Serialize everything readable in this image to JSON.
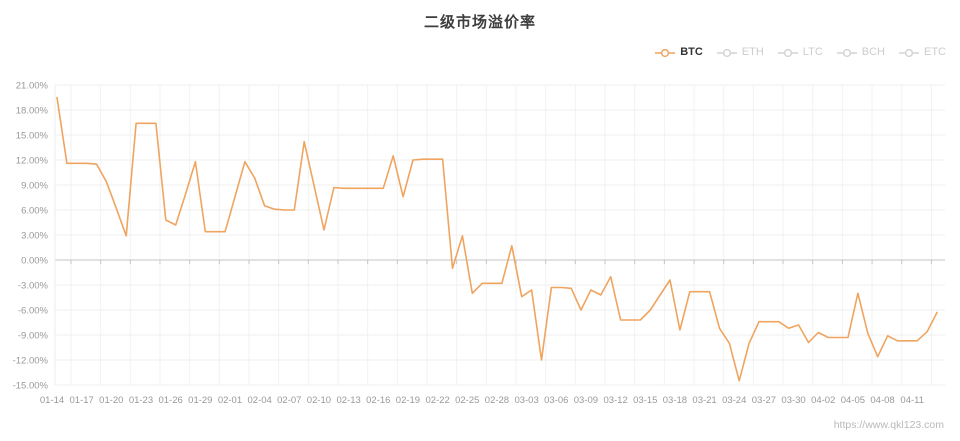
{
  "title": "二级市场溢价率",
  "watermark": "https://www.qkl123.com",
  "legend": {
    "items": [
      {
        "label": "BTC",
        "active": true,
        "icon": "line-series-icon",
        "color": "#efa45f",
        "text_color": "#333333"
      },
      {
        "label": "ETH",
        "active": false,
        "icon": "line-series-icon",
        "color": "#d4d4d4",
        "text_color": "#cccccc"
      },
      {
        "label": "LTC",
        "active": false,
        "icon": "line-series-icon",
        "color": "#d4d4d4",
        "text_color": "#cccccc"
      },
      {
        "label": "BCH",
        "active": false,
        "icon": "line-series-icon",
        "color": "#d4d4d4",
        "text_color": "#cccccc"
      },
      {
        "label": "ETC",
        "active": false,
        "icon": "line-series-icon",
        "color": "#d4d4d4",
        "text_color": "#cccccc"
      }
    ]
  },
  "colors": {
    "background": "#ffffff",
    "grid": "#efefef",
    "grid_vertical": "#f2f2f2",
    "zero_axis": "#c6c6c6",
    "y_axis_line": "#ececec",
    "axis_text": "#999999",
    "title_text": "#3d3d3d",
    "line": "#efa45f",
    "watermark_text": "#b9b9b9"
  },
  "chart_data": {
    "type": "line",
    "title": "二级市场溢价率",
    "xlabel": "",
    "ylabel": "",
    "ylim": [
      -15,
      21
    ],
    "y_step": 3,
    "y_ticks": [
      21,
      18,
      15,
      12,
      9,
      6,
      3,
      0,
      -3,
      -6,
      -9,
      -12,
      -15
    ],
    "y_tick_labels": [
      "21.00%",
      "18.00%",
      "15.00%",
      "12.00%",
      "9.00%",
      "6.00%",
      "3.00%",
      "0.00%",
      "-3.00%",
      "-6.00%",
      "-9.00%",
      "-12.00%",
      "-15.00%"
    ],
    "grid": true,
    "zero_axis_with_ticks": true,
    "legend_position": "top-right",
    "x_label_step": 3,
    "x": [
      "01-14",
      "01-15",
      "01-16",
      "01-17",
      "01-18",
      "01-19",
      "01-20",
      "01-21",
      "01-22",
      "01-23",
      "01-24",
      "01-25",
      "01-26",
      "01-27",
      "01-28",
      "01-29",
      "01-30",
      "01-31",
      "02-01",
      "02-02",
      "02-03",
      "02-04",
      "02-05",
      "02-06",
      "02-07",
      "02-08",
      "02-09",
      "02-10",
      "02-11",
      "02-12",
      "02-13",
      "02-14",
      "02-15",
      "02-16",
      "02-17",
      "02-18",
      "02-19",
      "02-20",
      "02-21",
      "02-22",
      "02-23",
      "02-24",
      "02-25",
      "02-26",
      "02-27",
      "02-28",
      "03-01",
      "03-02",
      "03-03",
      "03-04",
      "03-05",
      "03-06",
      "03-07",
      "03-08",
      "03-09",
      "03-10",
      "03-11",
      "03-12",
      "03-13",
      "03-14",
      "03-15",
      "03-16",
      "03-17",
      "03-18",
      "03-19",
      "03-20",
      "03-21",
      "03-22",
      "03-23",
      "03-24",
      "03-25",
      "03-26",
      "03-27",
      "03-28",
      "03-29",
      "03-30",
      "03-31",
      "04-01",
      "04-02",
      "04-03",
      "04-04",
      "04-05",
      "04-06",
      "04-07",
      "04-08",
      "04-09",
      "04-10",
      "04-11",
      "04-12",
      "04-13"
    ],
    "series": [
      {
        "name": "BTC",
        "color": "#efa45f",
        "unit": "%",
        "values": [
          19.5,
          11.6,
          11.6,
          11.6,
          11.5,
          9.4,
          6.2,
          2.9,
          16.4,
          16.4,
          16.4,
          4.8,
          4.2,
          7.9,
          11.8,
          3.4,
          3.4,
          3.4,
          7.6,
          11.8,
          9.8,
          6.5,
          6.1,
          6.0,
          6.0,
          14.2,
          8.9,
          3.6,
          8.7,
          8.6,
          8.6,
          8.6,
          8.6,
          8.6,
          12.5,
          7.6,
          12.0,
          12.1,
          12.1,
          12.1,
          -1.0,
          2.9,
          -4.0,
          -2.8,
          -2.8,
          -2.8,
          1.7,
          -4.4,
          -3.6,
          -12.0,
          -3.3,
          -3.3,
          -3.4,
          -6.0,
          -3.6,
          -4.2,
          -2.0,
          -7.2,
          -7.2,
          -7.2,
          -6.0,
          -4.2,
          -2.4,
          -8.4,
          -3.8,
          -3.8,
          -3.8,
          -8.2,
          -10.0,
          -14.5,
          -10.0,
          -7.4,
          -7.4,
          -7.4,
          -8.2,
          -7.8,
          -9.9,
          -8.7,
          -9.3,
          -9.3,
          -9.3,
          -4.0,
          -8.8,
          -11.6,
          -9.1,
          -9.7,
          -9.7,
          -9.7,
          -8.6,
          -6.3
        ]
      }
    ]
  }
}
